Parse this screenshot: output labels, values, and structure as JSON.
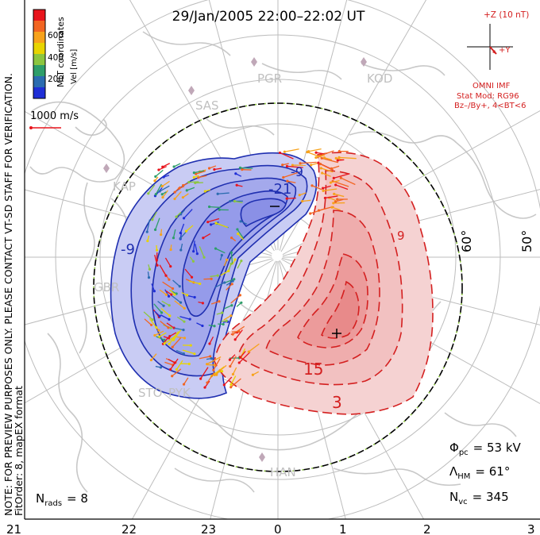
{
  "title": "29/Jan/2005 22:00–22:02 UT",
  "side_note": {
    "line1": "NOTE: FOR PREVIEW PURPOSES ONLY. PLEASE CONTACT VT-SD STAFF FOR VERIFICATION.",
    "line2": "FitOrder: 8, mapEX format"
  },
  "coord_label": "MLT coordinates",
  "colorbar": {
    "label": "Vel [m/s]",
    "ticks": [
      "600",
      "400",
      "200"
    ],
    "colors": [
      "#e8141c",
      "#f26522",
      "#f7a21b",
      "#e8d400",
      "#8cc63f",
      "#2e9e6a",
      "#2b6cb0",
      "#1f2fd6"
    ]
  },
  "reference_vector": {
    "label": "1000 m/s",
    "color": "#e8141c"
  },
  "imf": {
    "field_label": "+Z (10 nT)",
    "y_label": "+Y",
    "source": "OMNI IMF",
    "model": "Stat Mod: RG96",
    "condition": "Bz–/By+, 4<BT<6",
    "color": "#e8141c"
  },
  "stations": [
    "PGR",
    "KOD",
    "SAS",
    "KAP",
    "GBR",
    "STO",
    "PYK",
    "HAN"
  ],
  "latitude_labels": [
    "60°",
    "50°"
  ],
  "contour_labels": {
    "neg_outer": "-9",
    "neg_inner": "-21",
    "pos_mid": "15",
    "pos_outer": "3",
    "pos_small": "9",
    "neg_small": "-9"
  },
  "stats": {
    "phi_pc_symbol": "Φ",
    "phi_pc_sub": "pc",
    "phi_pc_value": "= 53 kV",
    "lambda_symbol": "Λ",
    "lambda_sub": "HM",
    "lambda_value": "= 61°",
    "nvc_symbol": "N",
    "nvc_sub": "vc",
    "nvc_value": "= 345",
    "nrads_symbol": "N",
    "nrads_sub": "rads",
    "nrads_value": "= 8"
  },
  "mlt_axis": [
    "21",
    "22",
    "23",
    "0",
    "1",
    "2",
    "3"
  ],
  "colors": {
    "negative": "#1f2fb0",
    "positive": "#d42020",
    "negative_fill": "#a9aff0",
    "positive_fill": "#f6b9b9",
    "coast": "#c8c8c8",
    "grid": "#bdbdbd"
  }
}
